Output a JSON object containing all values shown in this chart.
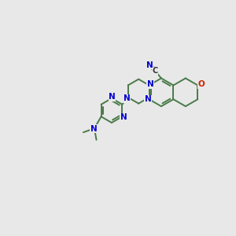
{
  "background_color": "#e8e8e8",
  "bond_color": "#4a7a4a",
  "n_color": "#0000cc",
  "o_color": "#cc2200",
  "c_label_color": "#333333",
  "lw": 1.4,
  "figsize": [
    3.0,
    3.0
  ],
  "dpi": 100,
  "xlim": [
    0,
    10
  ],
  "ylim": [
    0,
    10
  ]
}
